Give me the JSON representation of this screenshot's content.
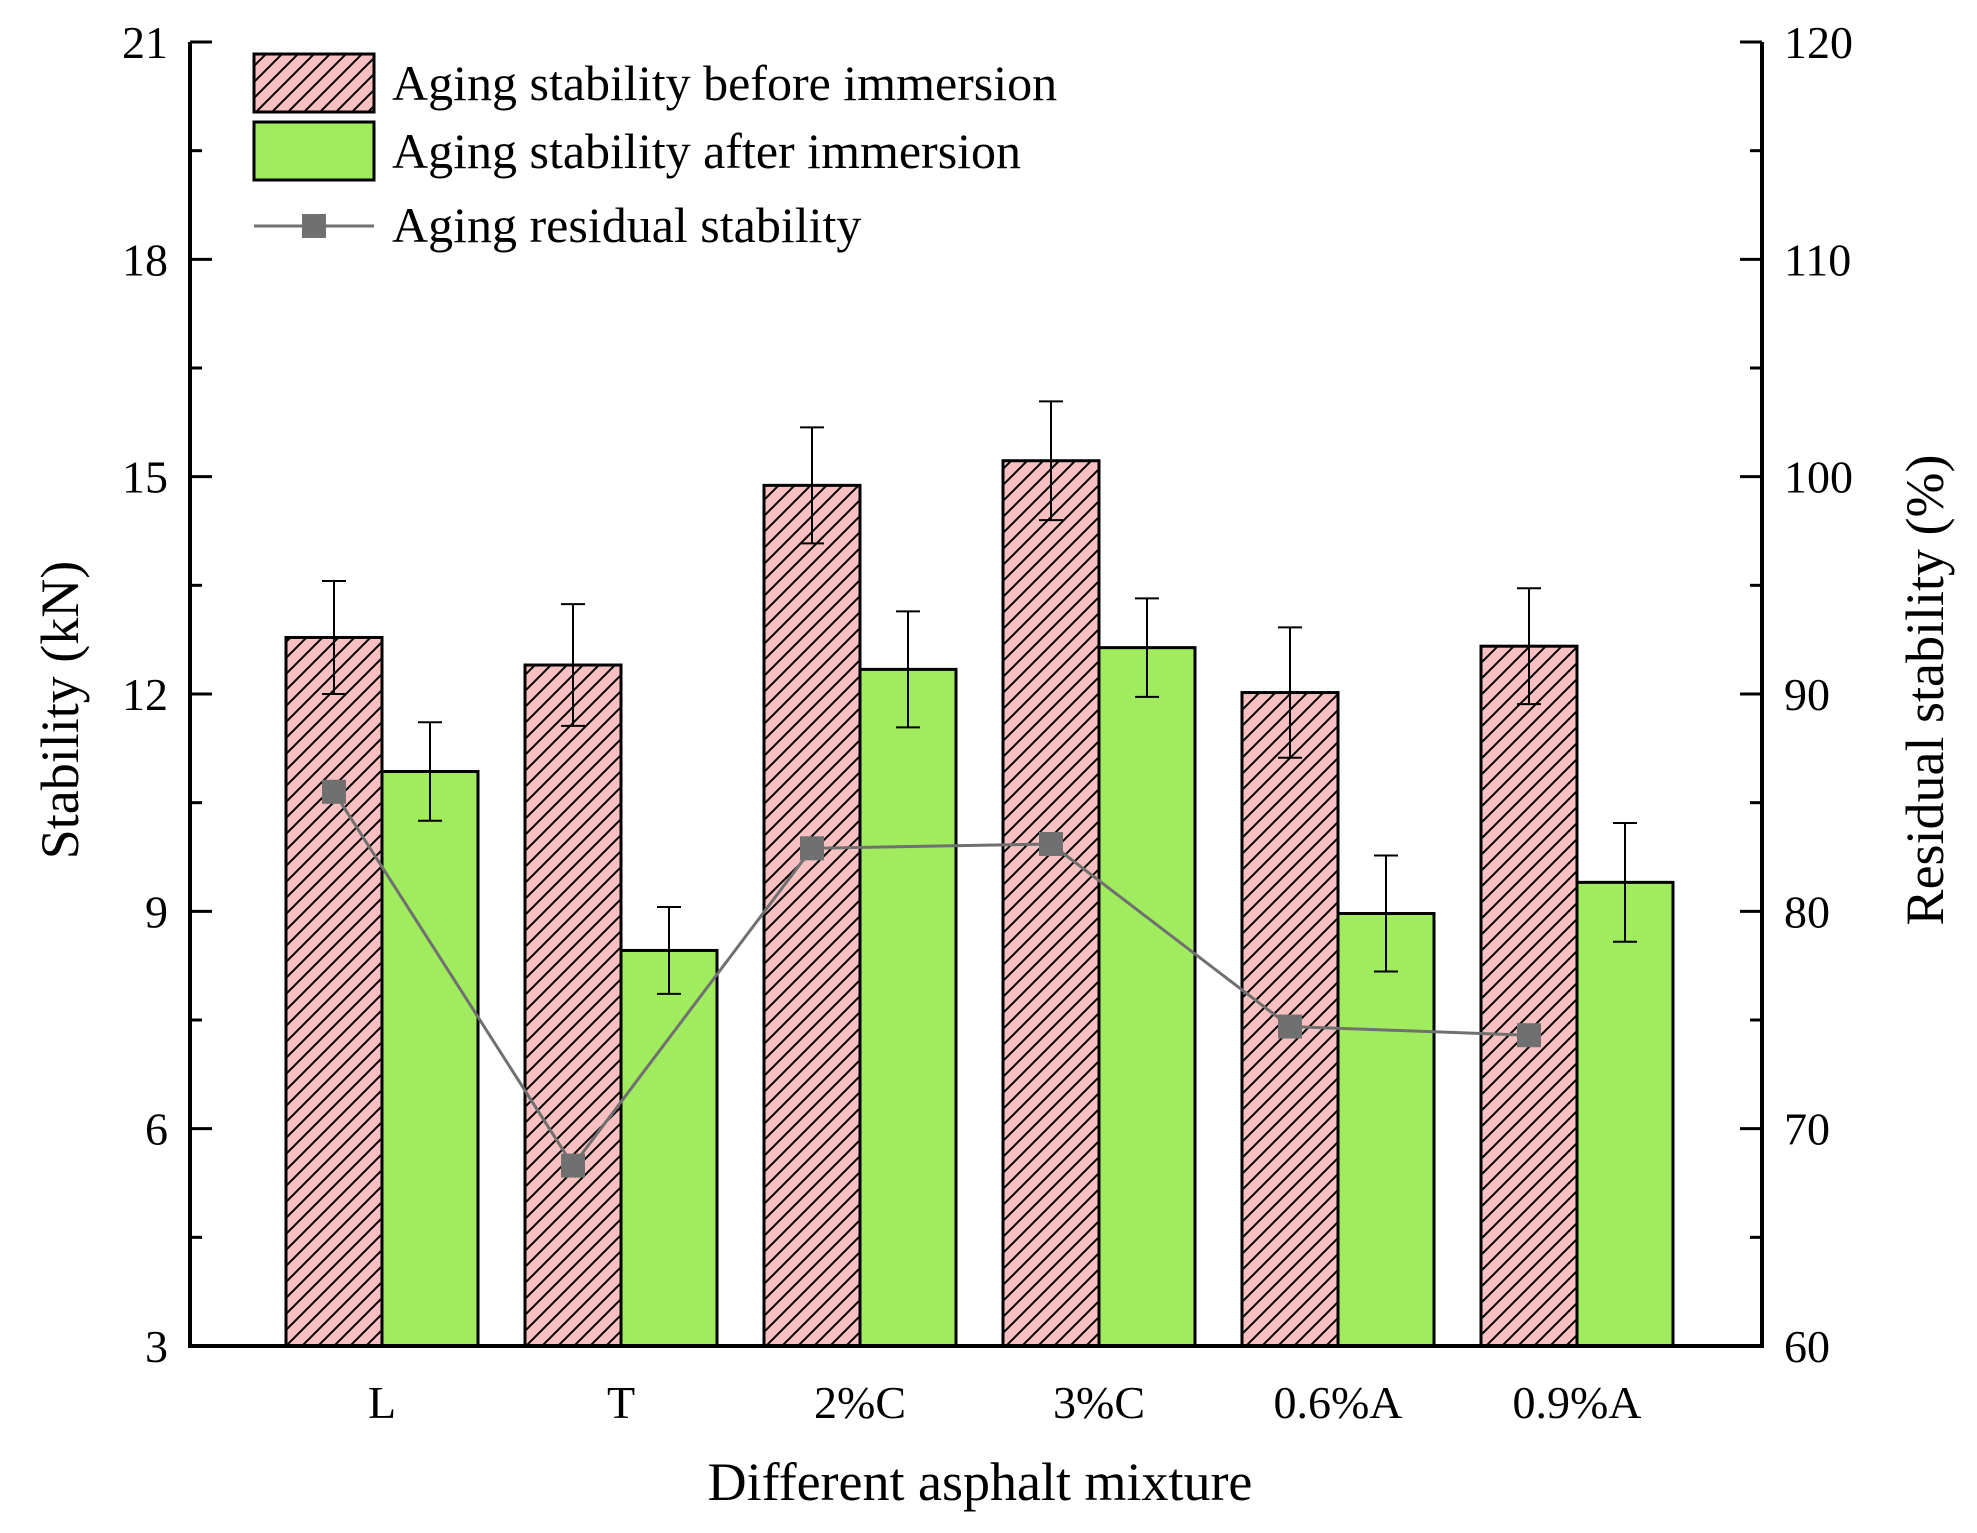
{
  "chart_data": {
    "type": "bar",
    "title": "",
    "xlabel": "Different asphalt mixture",
    "ylabel": "Stability (kN)",
    "y2label": "Residual stability (%)",
    "categories": [
      "L",
      "T",
      "2%C",
      "3%C",
      "0.6%A",
      "0.9%A"
    ],
    "ylim": [
      3,
      21
    ],
    "yticks": [
      3,
      6,
      9,
      12,
      15,
      18,
      21
    ],
    "y2lim": [
      60,
      120
    ],
    "y2ticks": [
      60,
      70,
      80,
      90,
      100,
      110,
      120
    ],
    "grid": false,
    "legend_position": "top-left",
    "series": [
      {
        "name": "Aging stability before immersion",
        "type": "bar",
        "axis": "left",
        "fill": "#f8c0c0",
        "hatch": "#000000",
        "values": [
          12.78,
          12.4,
          14.88,
          15.22,
          12.02,
          12.66
        ],
        "errors": [
          0.78,
          0.84,
          0.8,
          0.82,
          0.9,
          0.8
        ]
      },
      {
        "name": "Aging stability after immersion",
        "type": "bar",
        "axis": "left",
        "fill": "#a0eb5e",
        "values": [
          10.93,
          8.46,
          12.34,
          12.64,
          8.97,
          9.4
        ],
        "errors": [
          0.68,
          0.6,
          0.8,
          0.68,
          0.8,
          0.82
        ]
      },
      {
        "name": "Aging residual stability",
        "type": "line",
        "axis": "right",
        "color": "#707070",
        "values": [
          85.5,
          68.3,
          82.9,
          83.1,
          74.7,
          74.3
        ]
      }
    ]
  }
}
